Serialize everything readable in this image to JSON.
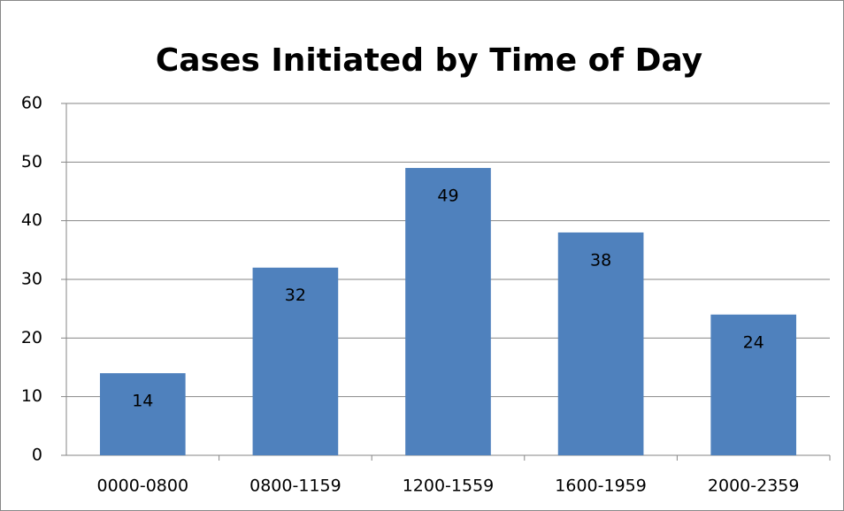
{
  "chart_data": {
    "type": "bar",
    "title": "Cases Initiated by Time of Day",
    "categories": [
      "0000-0800",
      "0800-1159",
      "1200-1559",
      "1600-1959",
      "2000-2359"
    ],
    "values": [
      14,
      32,
      49,
      38,
      24
    ],
    "color": "#4f81bd",
    "ylim": [
      0,
      60
    ],
    "yticks": [
      0,
      10,
      20,
      30,
      40,
      50,
      60
    ],
    "grid": true,
    "data_labels": true
  }
}
